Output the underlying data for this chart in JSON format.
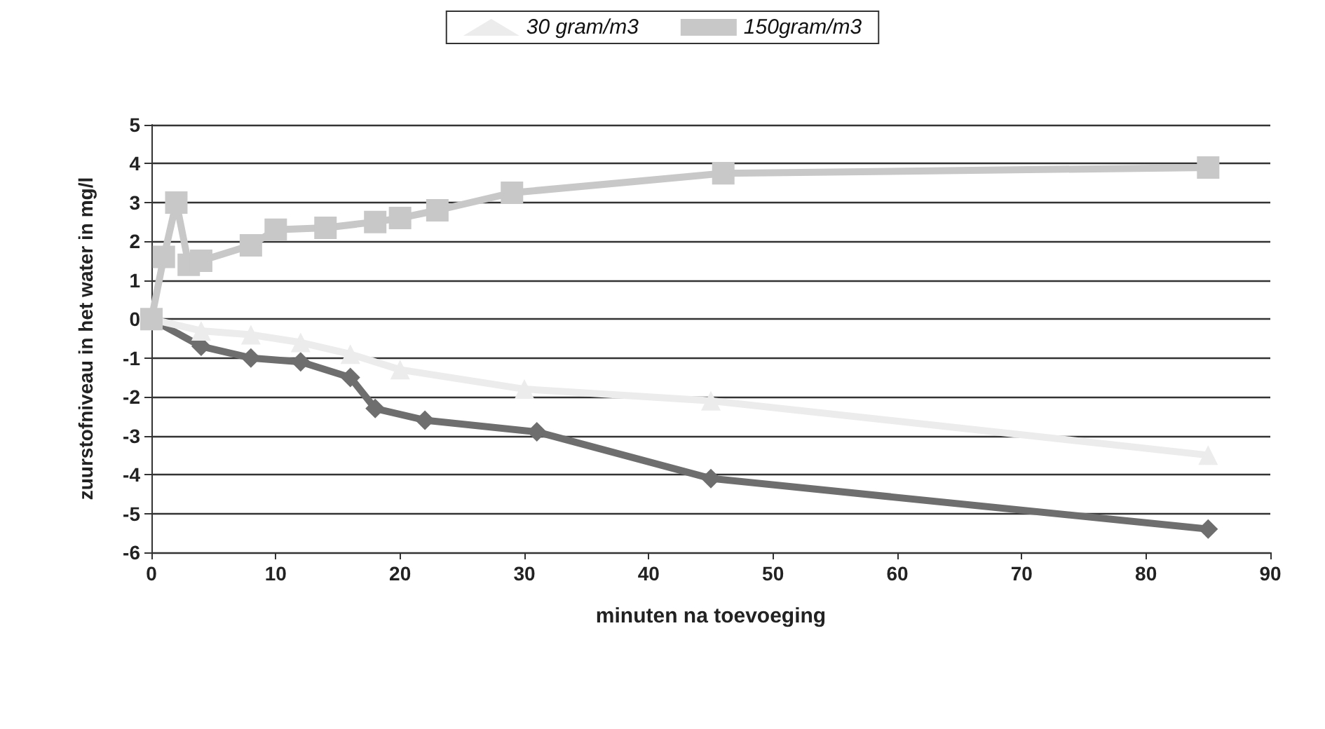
{
  "chart_data": {
    "type": "line",
    "xlabel": "minuten na toevoeging",
    "ylabel": "zuurstofniveau in het water in mg/l",
    "xlim": [
      0,
      90
    ],
    "xticks": [
      0,
      10,
      20,
      30,
      40,
      50,
      60,
      70,
      80,
      90
    ],
    "ylim": [
      -6,
      5
    ],
    "yticks": [
      -6,
      -5,
      -4,
      -3,
      -2,
      -1,
      0,
      1,
      2,
      3,
      4,
      5
    ],
    "grid": "y",
    "legend": "top",
    "line_style": "solid",
    "series": [
      {
        "color": "#6e6e6e",
        "marker": "diamond",
        "x": [
          0,
          4,
          8,
          12,
          16,
          18,
          22,
          31,
          45,
          85
        ],
        "values": [
          0,
          -0.7,
          -1.0,
          -1.1,
          -1.5,
          -2.3,
          -2.6,
          -2.9,
          -4.1,
          -5.4
        ]
      },
      {
        "name": "30 gram/m3",
        "color": "#ececec",
        "marker": "triangle",
        "x": [
          0,
          4,
          8,
          12,
          16,
          20,
          30,
          45,
          85
        ],
        "values": [
          0,
          -0.3,
          -0.4,
          -0.6,
          -0.9,
          -1.3,
          -1.8,
          -2.1,
          -3.5
        ]
      },
      {
        "name": "150gram/m3",
        "color": "#c8c8c8",
        "marker": "square",
        "x": [
          0,
          1,
          2,
          3,
          4,
          8,
          10,
          14,
          18,
          20,
          23,
          29,
          46,
          85
        ],
        "values": [
          0,
          1.6,
          3.0,
          1.4,
          1.5,
          1.9,
          2.3,
          2.35,
          2.5,
          2.6,
          2.8,
          3.25,
          3.75,
          3.9
        ]
      }
    ]
  }
}
